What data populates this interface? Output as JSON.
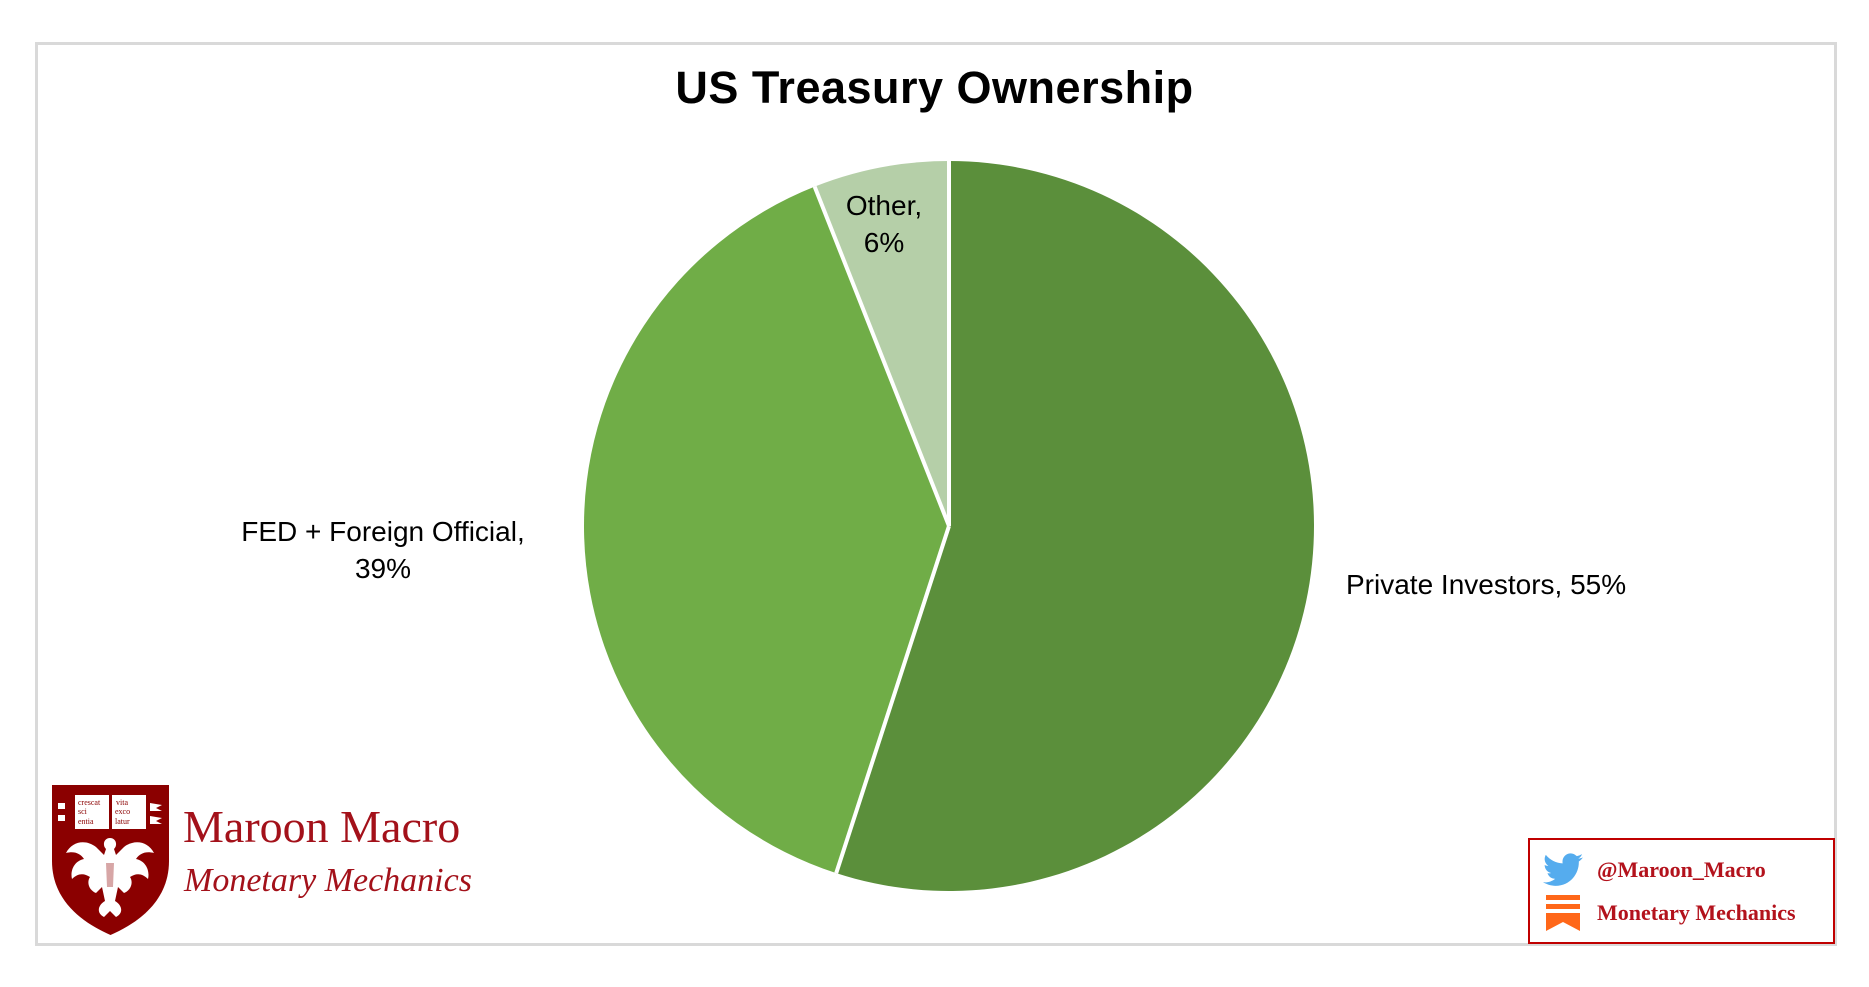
{
  "chart": {
    "title": "US Treasury Ownership",
    "frame_color": "#d9d9d9"
  },
  "labels": {
    "private": {
      "line1": "Private Investors, 55%"
    },
    "fed": {
      "line1": "FED + Foreign Official,",
      "line2": "39%"
    },
    "other": {
      "line1": "Other,",
      "line2": "6%"
    }
  },
  "branding": {
    "title": "Maroon Macro",
    "subtitle": "Monetary Mechanics",
    "shield_motto_left": [
      "crescat",
      "scientia"
    ],
    "shield_motto_right": [
      "vita",
      "excolatur"
    ],
    "color": "#8b0000"
  },
  "social": {
    "twitter_handle": "@Maroon_Macro",
    "substack_name": "Monetary Mechanics",
    "twitter_icon": "twitter-bird-icon",
    "substack_icon": "substack-icon",
    "border_color": "#c00000"
  },
  "chart_data": {
    "type": "pie",
    "title": "US Treasury Ownership",
    "categories": [
      "Private Investors",
      "FED + Foreign Official",
      "Other"
    ],
    "values": [
      55,
      39,
      6
    ],
    "unit": "%",
    "colors": [
      "#5b8f3b",
      "#70ad47",
      "#b5cfa8"
    ],
    "start_angle_deg": 0,
    "direction": "clockwise",
    "data_labels": [
      "Private Investors, 55%",
      "FED + Foreign Official, 39%",
      "Other, 6%"
    ],
    "legend": "none",
    "grid": false
  }
}
